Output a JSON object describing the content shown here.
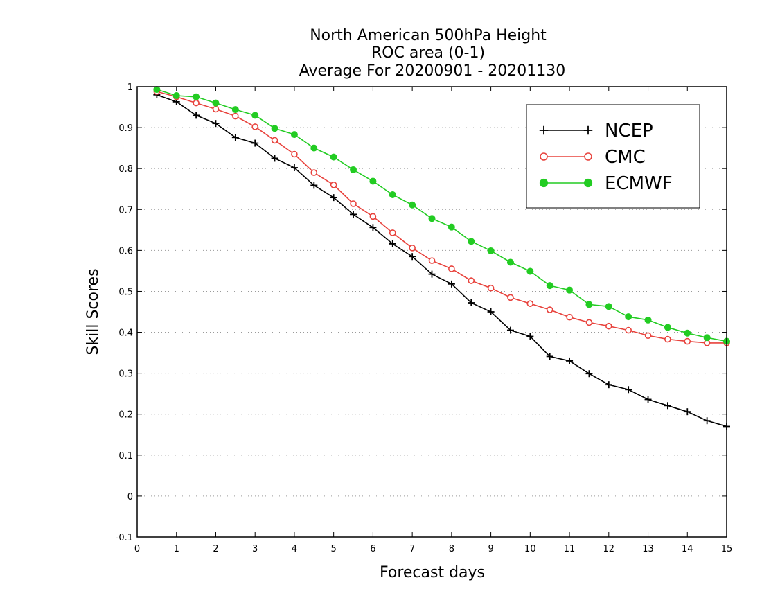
{
  "chart_data": {
    "type": "line",
    "title": [
      "North American 500hPa Height",
      "ROC area (0-1)",
      "Average For 20200901 - 20201130"
    ],
    "xlabel": "Forecast days",
    "ylabel": "Skill Scores",
    "xlim": [
      0,
      15
    ],
    "ylim": [
      -0.1,
      1
    ],
    "xticks": [
      0,
      1,
      2,
      3,
      4,
      5,
      6,
      7,
      8,
      9,
      10,
      11,
      12,
      13,
      14,
      15
    ],
    "yticks": [
      -0.1,
      0,
      0.1,
      0.2,
      0.3,
      0.4,
      0.5,
      0.6,
      0.7,
      0.8,
      0.9,
      1
    ],
    "ytick_labels": [
      "-0.1",
      "0",
      "0.1",
      "0.2",
      "0.3",
      "0.4",
      "0.5",
      "0.6",
      "0.7",
      "0.8",
      "0.9",
      "1"
    ],
    "grid": "horizontal dotted",
    "legend_position": "top-right",
    "x": [
      0.5,
      1,
      1.5,
      2,
      2.5,
      3,
      3.5,
      4,
      4.5,
      5,
      5.5,
      6,
      6.5,
      7,
      7.5,
      8,
      8.5,
      9,
      9.5,
      10,
      10.5,
      11,
      11.5,
      12,
      12.5,
      13,
      13.5,
      14,
      14.5,
      15
    ],
    "series": [
      {
        "name": "NCEP",
        "color": "#000000",
        "marker": "plus",
        "values": [
          0.98,
          0.963,
          0.93,
          0.91,
          0.876,
          0.862,
          0.825,
          0.802,
          0.759,
          0.729,
          0.688,
          0.656,
          0.616,
          0.585,
          0.542,
          0.518,
          0.472,
          0.45,
          0.405,
          0.39,
          0.341,
          0.33,
          0.299,
          0.272,
          0.26,
          0.236,
          0.221,
          0.206,
          0.184,
          0.17
        ]
      },
      {
        "name": "CMC",
        "color": "#e8423c",
        "marker": "open-circle",
        "values": [
          0.988,
          0.975,
          0.96,
          0.945,
          0.928,
          0.902,
          0.869,
          0.835,
          0.79,
          0.76,
          0.714,
          0.683,
          0.643,
          0.606,
          0.575,
          0.555,
          0.526,
          0.508,
          0.485,
          0.47,
          0.455,
          0.437,
          0.424,
          0.415,
          0.405,
          0.392,
          0.383,
          0.378,
          0.374,
          0.374
        ]
      },
      {
        "name": "ECMWF",
        "color": "#22cc22",
        "marker": "filled-circle",
        "values": [
          0.993,
          0.978,
          0.975,
          0.96,
          0.944,
          0.93,
          0.898,
          0.883,
          0.85,
          0.828,
          0.797,
          0.769,
          0.736,
          0.711,
          0.678,
          0.657,
          0.622,
          0.599,
          0.571,
          0.549,
          0.514,
          0.503,
          0.468,
          0.463,
          0.438,
          0.43,
          0.412,
          0.398,
          0.387,
          0.378
        ]
      }
    ]
  }
}
